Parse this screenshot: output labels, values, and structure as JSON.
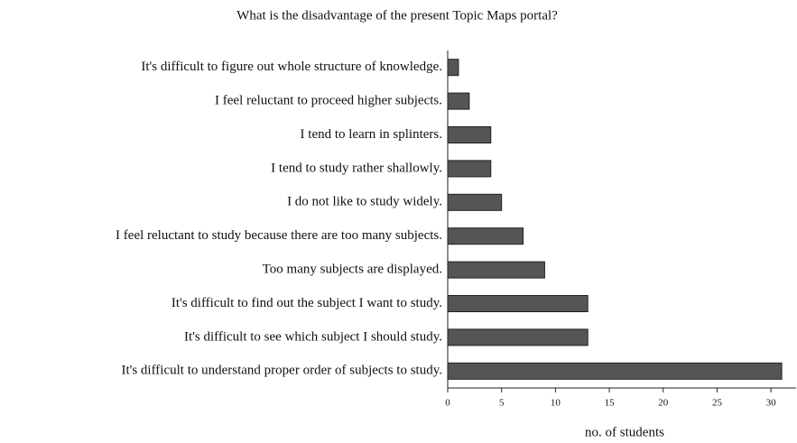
{
  "chart_data": {
    "type": "bar",
    "orientation": "horizontal",
    "title": "What is the disadvantage of the present Topic Maps portal?",
    "x_label": "no. of students",
    "categories": [
      "It's difficult to figure out whole structure of knowledge.",
      "I feel reluctant to proceed higher subjects.",
      "I tend to learn in splinters.",
      "I tend to study rather shallowly.",
      "I do not like to study widely.",
      "I feel reluctant to study because there are too many subjects.",
      "Too many subjects are displayed.",
      "It's difficult to find out the subject I want to study.",
      "It's difficult to see which subject I should study.",
      "It's difficult to understand proper order of subjects to study."
    ],
    "values": [
      1,
      2,
      4,
      4,
      5,
      7,
      9,
      13,
      13,
      31
    ],
    "color": "#555555",
    "xlim": [
      0,
      32
    ],
    "xticks": [
      0,
      5,
      10,
      15,
      20,
      25,
      30
    ],
    "grid": false
  }
}
